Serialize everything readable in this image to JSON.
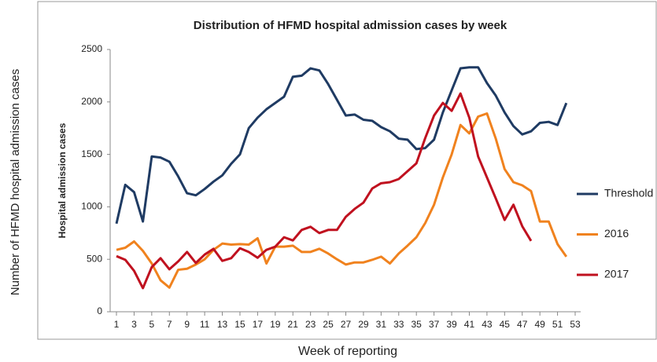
{
  "chart_data": {
    "type": "line",
    "title": "Distribution  of HFMD hospital admission  cases by week",
    "y_label": "Hospital admission cases",
    "outer_y_label": "Number of HFMD hospital admission cases",
    "x_label": "Week of reporting",
    "x": [
      1,
      2,
      3,
      4,
      5,
      6,
      7,
      8,
      9,
      10,
      11,
      12,
      13,
      14,
      15,
      16,
      17,
      18,
      19,
      20,
      21,
      22,
      23,
      24,
      25,
      26,
      27,
      28,
      29,
      30,
      31,
      32,
      33,
      34,
      35,
      36,
      37,
      38,
      39,
      40,
      41,
      42,
      43,
      44,
      45,
      46,
      47,
      48,
      49,
      50,
      51,
      52
    ],
    "series": [
      {
        "name": "Threshold",
        "color": "#1f3b63",
        "values": [
          840,
          1210,
          1140,
          860,
          1480,
          1470,
          1430,
          1290,
          1130,
          1110,
          1170,
          1240,
          1300,
          1410,
          1500,
          1750,
          1850,
          1930,
          1990,
          2050,
          2240,
          2250,
          2320,
          2300,
          2170,
          2020,
          1870,
          1880,
          1830,
          1820,
          1760,
          1720,
          1650,
          1640,
          1550,
          1560,
          1640,
          1900,
          2110,
          2320,
          2330,
          2330,
          2180,
          2060,
          1900,
          1770,
          1690,
          1720,
          1800,
          1810,
          1780,
          1990
        ]
      },
      {
        "name": "2016",
        "color": "#f0821e",
        "values": [
          590,
          610,
          670,
          580,
          460,
          300,
          230,
          400,
          410,
          450,
          500,
          590,
          650,
          640,
          645,
          640,
          700,
          460,
          620,
          620,
          630,
          570,
          570,
          600,
          555,
          500,
          450,
          470,
          470,
          495,
          525,
          460,
          555,
          630,
          710,
          845,
          1020,
          1280,
          1500,
          1780,
          1700,
          1860,
          1890,
          1650,
          1360,
          1235,
          1205,
          1150,
          860,
          860,
          645,
          525
        ]
      },
      {
        "name": "2017",
        "color": "#c0111f",
        "values": [
          530,
          495,
          390,
          225,
          425,
          510,
          405,
          480,
          570,
          465,
          545,
          600,
          485,
          510,
          605,
          570,
          515,
          590,
          620,
          710,
          680,
          780,
          810,
          750,
          780,
          780,
          905,
          980,
          1040,
          1175,
          1225,
          1235,
          1265,
          1340,
          1415,
          1655,
          1870,
          1990,
          1915,
          2080,
          1850,
          1480,
          1280,
          1080,
          875,
          1020,
          815,
          675,
          null,
          null,
          null,
          null
        ]
      }
    ],
    "xlim": [
      1,
      53
    ],
    "xticks": [
      1,
      3,
      5,
      7,
      9,
      11,
      13,
      15,
      17,
      19,
      21,
      23,
      25,
      27,
      29,
      31,
      33,
      35,
      37,
      39,
      41,
      43,
      45,
      47,
      49,
      51,
      53
    ],
    "ylim": [
      0,
      2500
    ],
    "yticks": [
      0,
      500,
      1000,
      1500,
      2000,
      2500
    ],
    "grid": false,
    "legend": "right"
  }
}
